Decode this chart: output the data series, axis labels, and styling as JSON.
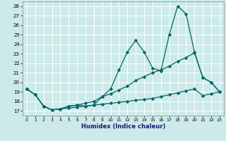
{
  "xlabel": "Humidex (Indice chaleur)",
  "bg_color": "#cceaea",
  "grid_color": "#ffffff",
  "line_color": "#006666",
  "xlim": [
    -0.5,
    23.5
  ],
  "ylim": [
    16.5,
    28.5
  ],
  "xticks": [
    0,
    1,
    2,
    3,
    4,
    5,
    6,
    7,
    8,
    9,
    10,
    11,
    12,
    13,
    14,
    15,
    16,
    17,
    18,
    19,
    20,
    21,
    22,
    23
  ],
  "yticks": [
    17,
    18,
    19,
    20,
    21,
    22,
    23,
    24,
    25,
    26,
    27,
    28
  ],
  "series": [
    {
      "x": [
        0,
        1,
        2,
        3,
        4,
        5,
        6,
        7,
        8,
        9,
        10,
        11,
        12,
        13,
        14,
        15,
        16,
        17,
        18,
        19,
        20,
        21,
        22,
        23
      ],
      "y": [
        19.3,
        18.7,
        17.5,
        17.1,
        17.2,
        17.5,
        17.6,
        17.5,
        17.6,
        18.5,
        19.3,
        21.3,
        23.2,
        24.4,
        23.2,
        21.5,
        21.2,
        25.0,
        28.0,
        27.2,
        23.2,
        20.5,
        20.0,
        19.0
      ]
    },
    {
      "x": [
        0,
        1,
        2,
        3,
        4,
        5,
        6,
        7,
        8,
        9,
        10,
        11,
        12,
        13,
        14,
        15,
        16,
        17,
        18,
        19,
        20,
        21,
        22,
        23
      ],
      "y": [
        19.3,
        18.7,
        17.5,
        17.1,
        17.2,
        17.5,
        17.6,
        17.8,
        18.0,
        18.5,
        18.8,
        19.2,
        19.6,
        20.2,
        20.6,
        21.0,
        21.3,
        21.7,
        22.2,
        22.6,
        23.1,
        20.5,
        20.0,
        19.0
      ]
    },
    {
      "x": [
        0,
        1,
        2,
        3,
        4,
        5,
        6,
        7,
        8,
        9,
        10,
        11,
        12,
        13,
        14,
        15,
        16,
        17,
        18,
        19,
        20,
        21,
        22,
        23
      ],
      "y": [
        19.3,
        18.7,
        17.5,
        17.1,
        17.2,
        17.3,
        17.4,
        17.5,
        17.6,
        17.7,
        17.8,
        17.9,
        18.0,
        18.1,
        18.2,
        18.3,
        18.5,
        18.7,
        18.9,
        19.1,
        19.3,
        18.6,
        18.8,
        19.0
      ]
    }
  ]
}
